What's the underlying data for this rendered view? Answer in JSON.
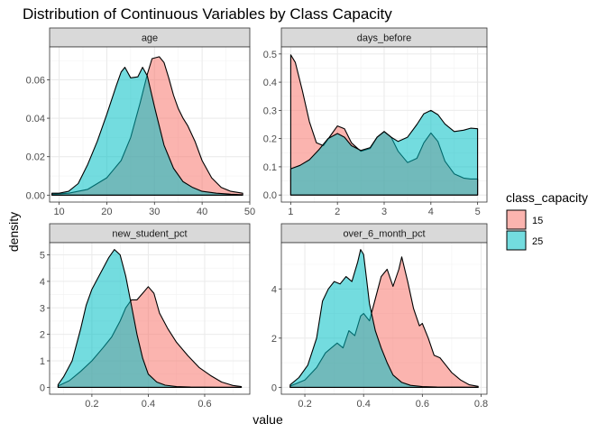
{
  "chart_data": {
    "type": "area",
    "title": "Distribution of Continuous Variables by Class Capacity",
    "xlabel": "value",
    "ylabel": "density",
    "grid": true,
    "legend": {
      "title": "class_capacity",
      "placement": "right",
      "entries": [
        {
          "label": "15",
          "color": "#F8766D"
        },
        {
          "label": "25",
          "color": "#00BFC4"
        }
      ]
    },
    "facets": [
      {
        "name": "age",
        "xlim": [
          8,
          50
        ],
        "ylim": [
          -0.0036,
          0.0771
        ],
        "xticks": [
          10,
          20,
          30,
          40,
          50
        ],
        "yticks": [
          0,
          0.02,
          0.04,
          0.06
        ],
        "xtick_labels": [
          "10",
          "20",
          "30",
          "40",
          "50"
        ],
        "ytick_labels": [
          "0.00",
          "0.02",
          "0.04",
          "0.06"
        ],
        "series": [
          {
            "name": "15",
            "color": "#F8766D",
            "x": [
              8.5,
              12,
              16,
              20,
              23,
              25,
              27,
              28.5,
              29.5,
              31,
              32,
              33,
              34,
              35,
              36,
              37,
              38.5,
              40,
              42,
              44,
              46,
              48.5
            ],
            "y": [
              0.0005,
              0.001,
              0.003,
              0.009,
              0.018,
              0.03,
              0.048,
              0.063,
              0.071,
              0.072,
              0.069,
              0.061,
              0.052,
              0.045,
              0.04,
              0.036,
              0.028,
              0.018,
              0.009,
              0.004,
              0.002,
              0.001
            ]
          },
          {
            "name": "25",
            "color": "#00BFC4",
            "x": [
              8.5,
              10,
              12,
              14,
              16,
              18,
              20,
              22,
              23,
              23.8,
              25,
              26.5,
              27.5,
              28.5,
              30,
              31,
              32,
              34,
              36,
              38,
              40,
              43,
              46,
              48.5
            ],
            "y": [
              0.001,
              0.001,
              0.002,
              0.006,
              0.016,
              0.028,
              0.042,
              0.057,
              0.064,
              0.0665,
              0.061,
              0.0615,
              0.0665,
              0.062,
              0.046,
              0.036,
              0.026,
              0.014,
              0.007,
              0.004,
              0.002,
              0.001,
              0.0005,
              0.0002
            ]
          }
        ]
      },
      {
        "name": "days_before",
        "xlim": [
          0.8,
          5.2
        ],
        "ylim": [
          -0.025,
          0.525
        ],
        "xticks": [
          1,
          2,
          3,
          4,
          5
        ],
        "yticks": [
          0,
          0.1,
          0.2,
          0.3,
          0.4,
          0.5
        ],
        "xtick_labels": [
          "1",
          "2",
          "3",
          "4",
          "5"
        ],
        "ytick_labels": [
          "0.0",
          "0.1",
          "0.2",
          "0.3",
          "0.4",
          "0.5"
        ],
        "series": [
          {
            "name": "15",
            "color": "#F8766D",
            "x": [
              1.0,
              1.1,
              1.25,
              1.4,
              1.55,
              1.7,
              1.85,
              2.0,
              2.15,
              2.3,
              2.5,
              2.7,
              2.85,
              3.0,
              3.15,
              3.3,
              3.5,
              3.7,
              3.85,
              4.0,
              4.15,
              4.3,
              4.5,
              4.7,
              4.85,
              5.0
            ],
            "y": [
              0.497,
              0.47,
              0.37,
              0.26,
              0.185,
              0.175,
              0.21,
              0.245,
              0.235,
              0.185,
              0.155,
              0.165,
              0.205,
              0.225,
              0.205,
              0.155,
              0.115,
              0.13,
              0.185,
              0.22,
              0.19,
              0.12,
              0.075,
              0.06,
              0.057,
              0.057
            ]
          },
          {
            "name": "25",
            "color": "#00BFC4",
            "x": [
              1.0,
              1.2,
              1.4,
              1.6,
              1.8,
              2.0,
              2.15,
              2.3,
              2.5,
              2.7,
              2.85,
              3.0,
              3.15,
              3.3,
              3.5,
              3.7,
              3.85,
              4.0,
              4.15,
              4.3,
              4.5,
              4.7,
              4.85,
              5.0
            ],
            "y": [
              0.093,
              0.105,
              0.125,
              0.16,
              0.2,
              0.218,
              0.205,
              0.175,
              0.158,
              0.168,
              0.205,
              0.225,
              0.205,
              0.19,
              0.205,
              0.25,
              0.288,
              0.3,
              0.285,
              0.252,
              0.225,
              0.23,
              0.237,
              0.235
            ]
          }
        ]
      },
      {
        "name": "new_student_pct",
        "xlim": [
          0.05,
          0.76
        ],
        "ylim": [
          -0.26,
          5.46
        ],
        "xticks": [
          0.2,
          0.4,
          0.6
        ],
        "yticks": [
          0,
          1,
          2,
          3,
          4,
          5
        ],
        "xtick_labels": [
          "0.2",
          "0.4",
          "0.6"
        ],
        "ytick_labels": [
          "0",
          "1",
          "2",
          "3",
          "4",
          "5"
        ],
        "series": [
          {
            "name": "15",
            "color": "#F8766D",
            "x": [
              0.08,
              0.12,
              0.16,
              0.2,
              0.24,
              0.27,
              0.3,
              0.32,
              0.34,
              0.36,
              0.38,
              0.4,
              0.42,
              0.44,
              0.47,
              0.5,
              0.54,
              0.58,
              0.62,
              0.66,
              0.7,
              0.73
            ],
            "y": [
              0.05,
              0.25,
              0.6,
              1.0,
              1.5,
              1.9,
              2.5,
              3.0,
              3.3,
              3.3,
              3.55,
              3.8,
              3.55,
              2.8,
              2.2,
              1.7,
              1.2,
              0.75,
              0.45,
              0.2,
              0.07,
              0.03
            ]
          },
          {
            "name": "25",
            "color": "#00BFC4",
            "x": [
              0.08,
              0.1,
              0.13,
              0.16,
              0.18,
              0.2,
              0.22,
              0.24,
              0.26,
              0.28,
              0.3,
              0.32,
              0.34,
              0.36,
              0.38,
              0.4,
              0.43,
              0.46,
              0.5,
              0.55,
              0.6,
              0.65,
              0.7,
              0.73
            ],
            "y": [
              0.1,
              0.4,
              1.0,
              2.2,
              3.1,
              3.7,
              4.1,
              4.5,
              4.9,
              5.2,
              5.0,
              4.2,
              3.1,
              2.0,
              1.1,
              0.5,
              0.2,
              0.08,
              0.03,
              0.01,
              0.005,
              0.003,
              0.002,
              0.001
            ]
          }
        ]
      },
      {
        "name": "over_6_month_pct",
        "xlim": [
          0.12,
          0.82
        ],
        "ylim": [
          -0.28,
          5.88
        ],
        "xticks": [
          0.2,
          0.4,
          0.6,
          0.8
        ],
        "yticks": [
          0,
          2,
          4
        ],
        "xtick_labels": [
          "0.2",
          "0.4",
          "0.6",
          "0.8"
        ],
        "ytick_labels": [
          "0",
          "2",
          "4"
        ],
        "series": [
          {
            "name": "15",
            "color": "#F8766D",
            "x": [
              0.15,
              0.2,
              0.24,
              0.27,
              0.29,
              0.31,
              0.33,
              0.35,
              0.37,
              0.39,
              0.4,
              0.42,
              0.44,
              0.46,
              0.48,
              0.5,
              0.52,
              0.53,
              0.55,
              0.57,
              0.59,
              0.6,
              0.62,
              0.64,
              0.66,
              0.68,
              0.7,
              0.73,
              0.76,
              0.79
            ],
            "y": [
              0.05,
              0.3,
              0.8,
              1.4,
              1.6,
              1.8,
              1.6,
              2.3,
              2.1,
              2.9,
              3.0,
              2.7,
              3.6,
              4.5,
              4.8,
              4.1,
              4.8,
              5.3,
              4.3,
              3.2,
              2.5,
              2.6,
              2.0,
              1.3,
              1.2,
              0.9,
              0.6,
              0.3,
              0.1,
              0.04
            ]
          },
          {
            "name": "25",
            "color": "#00BFC4",
            "x": [
              0.15,
              0.18,
              0.21,
              0.24,
              0.26,
              0.28,
              0.3,
              0.32,
              0.34,
              0.36,
              0.38,
              0.39,
              0.4,
              0.41,
              0.42,
              0.44,
              0.46,
              0.48,
              0.5,
              0.53,
              0.56,
              0.6,
              0.65,
              0.7,
              0.79
            ],
            "y": [
              0.1,
              0.4,
              0.9,
              2.0,
              3.5,
              4.0,
              4.3,
              4.2,
              4.5,
              4.3,
              5.1,
              5.6,
              5.4,
              4.4,
              3.4,
              2.3,
              1.6,
              1.0,
              0.5,
              0.2,
              0.08,
              0.03,
              0.01,
              0.005,
              0.002
            ]
          }
        ]
      }
    ]
  }
}
